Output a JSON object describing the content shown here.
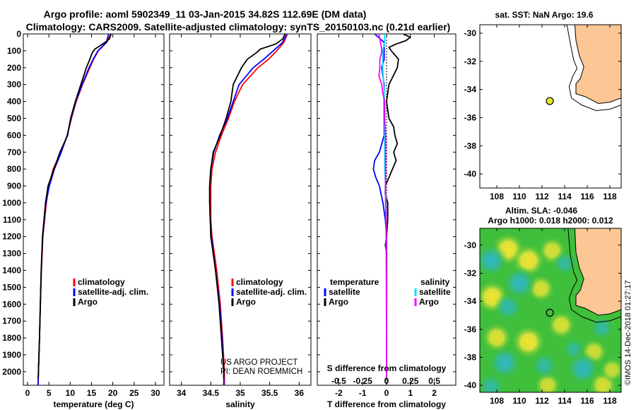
{
  "figure": {
    "title_line1": "Argo profile: aoml 5902349_11 03-Jan-2015 34.82S 112.69E (DM data)",
    "title_line2": "Climatology: CARS2009. Satellite-adjusted climatology: synTS_20150103.nc (0.21d earlier)",
    "credit_line1": "US ARGO PROJECT",
    "credit_line2": "PI: DEAN ROEMMICH",
    "stamp": "©IMOS 14-Dec-2018 01:27:17"
  },
  "colors": {
    "climatology": "#ff0000",
    "satellite": "#0000ff",
    "argo": "#000000",
    "satellite_salinity": "#00e5ff",
    "argo_salinity": "#ff00ff",
    "land": "#fcc695",
    "position_marker": "#e6e628"
  },
  "chart_data": [
    {
      "id": "temperature",
      "type": "line",
      "xlabel": "temperature (deg C)",
      "ylabel": "",
      "xlim": [
        -1,
        32
      ],
      "ylim": [
        2080,
        0
      ],
      "xticks": [
        0,
        5,
        10,
        15,
        20,
        25,
        30
      ],
      "yticks": [
        0,
        100,
        200,
        300,
        400,
        500,
        600,
        700,
        800,
        900,
        1000,
        1100,
        1200,
        1300,
        1400,
        1500,
        1600,
        1700,
        1800,
        1900,
        2000
      ],
      "legend": [
        "climatology",
        "satellite-adj. clim.",
        "Argo"
      ],
      "series": [
        {
          "name": "climatology",
          "depth": [
            0,
            50,
            100,
            150,
            200,
            300,
            400,
            500,
            600,
            700,
            800,
            900,
            1000,
            1200,
            1400,
            1600,
            1800,
            2000,
            2080
          ],
          "values": [
            19.5,
            18.6,
            16.6,
            15.5,
            14.6,
            12.9,
            11.4,
            10.3,
            9.3,
            7.8,
            6.0,
            5.0,
            4.4,
            3.6,
            3.25,
            3.0,
            2.8,
            2.55,
            2.45
          ]
        },
        {
          "name": "satellite-adj. clim.",
          "depth": [
            0,
            50,
            100,
            150,
            200,
            300,
            400,
            500,
            600,
            700,
            800,
            900,
            1000,
            1200,
            1400,
            1600,
            1800,
            2000,
            2080
          ],
          "values": [
            19.0,
            18.5,
            16.5,
            15.4,
            14.4,
            12.8,
            11.3,
            10.2,
            9.3,
            7.9,
            6.3,
            5.1,
            4.3,
            3.55,
            3.2,
            3.0,
            2.8,
            2.55,
            2.45
          ]
        },
        {
          "name": "Argo",
          "depth": [
            0,
            30,
            60,
            90,
            110,
            150,
            200,
            300,
            400,
            500,
            600,
            700,
            800,
            900,
            1000,
            1200,
            1400,
            1600,
            1800,
            2000,
            2040
          ],
          "values": [
            19.6,
            19.2,
            17.6,
            15.8,
            15.2,
            14.6,
            13.8,
            12.5,
            11.2,
            10.1,
            9.4,
            7.6,
            6.2,
            4.8,
            4.2,
            3.5,
            3.2,
            3.0,
            2.8,
            2.55,
            2.5
          ]
        }
      ]
    },
    {
      "id": "salinity",
      "type": "line",
      "xlabel": "salinity",
      "ylabel": "",
      "xlim": [
        33.8,
        36.2
      ],
      "ylim": [
        2080,
        0
      ],
      "xticks": [
        34,
        34.5,
        35,
        35.5,
        36
      ],
      "xticklabels": [
        "34",
        "34.5",
        "35",
        "35.5",
        "36"
      ],
      "legend": [
        "climatology",
        "satellite-adj. clim.",
        "Argo"
      ],
      "series": [
        {
          "name": "climatology",
          "depth": [
            0,
            50,
            100,
            150,
            200,
            300,
            400,
            500,
            600,
            700,
            800,
            900,
            1000,
            1100,
            1200,
            1400,
            1600,
            1800,
            2000,
            2080
          ],
          "values": [
            35.8,
            35.74,
            35.62,
            35.48,
            35.3,
            35.04,
            34.9,
            34.8,
            34.68,
            34.58,
            34.52,
            34.5,
            34.5,
            34.5,
            34.52,
            34.6,
            34.66,
            34.7,
            34.73,
            34.73
          ]
        },
        {
          "name": "satellite-adj. clim.",
          "depth": [
            0,
            50,
            100,
            150,
            200,
            300,
            400,
            500,
            600,
            700,
            800,
            900,
            1000,
            1100,
            1200,
            1400,
            1600,
            1800,
            2000,
            2080
          ],
          "values": [
            35.79,
            35.72,
            35.56,
            35.4,
            35.22,
            34.98,
            34.88,
            34.78,
            34.65,
            34.55,
            34.5,
            34.48,
            34.48,
            34.49,
            34.51,
            34.58,
            34.65,
            34.69,
            34.72,
            34.72
          ]
        },
        {
          "name": "Argo",
          "depth": [
            0,
            30,
            60,
            90,
            110,
            150,
            200,
            300,
            400,
            500,
            600,
            700,
            800,
            900,
            1000,
            1100,
            1200,
            1400,
            1600,
            1800,
            2000,
            2040
          ],
          "values": [
            35.76,
            35.72,
            35.6,
            35.34,
            35.28,
            35.12,
            35.02,
            34.88,
            34.84,
            34.76,
            34.66,
            34.54,
            34.5,
            34.48,
            34.48,
            34.49,
            34.5,
            34.58,
            34.64,
            34.68,
            34.72,
            34.72
          ]
        }
      ]
    },
    {
      "id": "difference",
      "type": "line",
      "xlabel": "T difference from climatology",
      "top_axis_label": "S difference from climatology",
      "xlim": [
        -2.9,
        2.9
      ],
      "ylim": [
        2080,
        0
      ],
      "xticks": [
        -2,
        -1,
        0,
        1,
        2
      ],
      "xticklabels": [
        "-2",
        "-1",
        "0",
        "1",
        "2"
      ],
      "s_ticks": [
        -0.5,
        -0.25,
        0,
        0.25,
        0.5
      ],
      "s_ticklabels": [
        "-0.5",
        "-0.25",
        "0",
        "0.25",
        "0.5"
      ],
      "s_scale": "1 salinity unit = 4 temperature units",
      "legend_temperature_header": "temperature",
      "legend_salinity_header": "salinity",
      "legend_temperature": [
        "satellite",
        "Argo"
      ],
      "legend_salinity": [
        "satellite",
        "Argo"
      ],
      "series": [
        {
          "name": "temperature satellite",
          "variable": "T",
          "depth": [
            0,
            50,
            100,
            150,
            200,
            300,
            400,
            500,
            600,
            700,
            750,
            800,
            850,
            900,
            1000,
            1100,
            1200,
            1400,
            1600,
            1800,
            2000,
            2040
          ],
          "values": [
            -0.5,
            -0.1,
            -0.1,
            -0.1,
            -0.2,
            -0.1,
            -0.1,
            -0.1,
            -0.1,
            -0.3,
            -0.5,
            -0.55,
            -0.45,
            -0.3,
            -0.15,
            -0.05,
            0,
            0,
            0,
            0,
            0,
            0
          ]
        },
        {
          "name": "temperature Argo",
          "variable": "T",
          "depth": [
            0,
            20,
            40,
            60,
            80,
            100,
            150,
            200,
            300,
            400,
            500,
            550,
            600,
            650,
            700,
            750,
            800,
            850,
            900,
            950,
            1000,
            1100,
            1200,
            1250,
            1300,
            1400,
            1500,
            1600,
            1800,
            2000,
            2040
          ],
          "values": [
            0.7,
            1.0,
            0.8,
            0.4,
            0.1,
            0.2,
            0.5,
            0.45,
            0.1,
            0.0,
            0.1,
            0.3,
            0.35,
            0.45,
            0.3,
            0.4,
            0.25,
            0.1,
            -0.05,
            -0.05,
            0.05,
            0.05,
            0.0,
            -0.05,
            0.0,
            0.0,
            0.0,
            0.0,
            0.0,
            0.0,
            0.0
          ]
        },
        {
          "name": "salinity satellite",
          "variable": "S",
          "depth": [
            0,
            50,
            100,
            200,
            300,
            400,
            500,
            600,
            700,
            800,
            900,
            1000,
            1100,
            1200,
            1400,
            1600,
            1800,
            2000,
            2040
          ],
          "values": [
            -0.02,
            -0.02,
            -0.04,
            -0.04,
            -0.03,
            -0.02,
            -0.02,
            -0.02,
            -0.02,
            -0.02,
            -0.01,
            -0.005,
            -0.005,
            -0.004,
            -0.002,
            -0.002,
            0,
            0,
            0
          ]
        },
        {
          "name": "salinity Argo",
          "variable": "S",
          "depth": [
            0,
            30,
            60,
            90,
            110,
            150,
            200,
            250,
            300,
            350,
            400,
            500,
            600,
            700,
            800,
            900,
            1000,
            1100,
            1200,
            1400,
            1600,
            1800,
            2000,
            2040
          ],
          "values": [
            -0.08,
            -0.07,
            -0.06,
            -0.05,
            -0.05,
            -0.07,
            -0.07,
            -0.08,
            -0.05,
            -0.04,
            -0.02,
            -0.02,
            -0.01,
            -0.01,
            -0.01,
            -0.01,
            -0.01,
            -0.005,
            -0.004,
            -0.002,
            0,
            0,
            0,
            0
          ]
        }
      ]
    },
    {
      "id": "sst_map",
      "type": "scatter",
      "title": "sat. SST: NaN Argo: 19.6",
      "xlim": [
        106.5,
        119
      ],
      "ylim": [
        -41,
        -29.4
      ],
      "xticks": [
        108,
        110,
        112,
        114,
        116,
        118
      ],
      "yticks": [
        -30,
        -32,
        -34,
        -36,
        -38,
        -40
      ],
      "yticklabels": [
        "-30",
        "-32",
        "-34",
        "-36",
        "-38",
        "-40"
      ],
      "marker": {
        "lon": 112.69,
        "lat": -34.82
      },
      "coast": [
        [
          114.9,
          -29.4
        ],
        [
          115.0,
          -30.5
        ],
        [
          115.3,
          -31.6
        ],
        [
          115.7,
          -32.4
        ],
        [
          115.4,
          -33.2
        ],
        [
          115.0,
          -33.6
        ],
        [
          115.0,
          -34.3
        ],
        [
          115.8,
          -34.5
        ],
        [
          117.0,
          -35.0
        ],
        [
          118.0,
          -34.9
        ],
        [
          119.0,
          -34.6
        ]
      ],
      "isobath": [
        [
          114.2,
          -29.4
        ],
        [
          114.5,
          -30.7
        ],
        [
          114.8,
          -31.9
        ],
        [
          115.1,
          -32.5
        ],
        [
          114.7,
          -33.1
        ],
        [
          114.4,
          -33.8
        ],
        [
          114.6,
          -34.6
        ],
        [
          115.5,
          -35.1
        ],
        [
          116.8,
          -35.5
        ],
        [
          118.0,
          -35.4
        ],
        [
          119.0,
          -35.1
        ]
      ]
    },
    {
      "id": "sla_map",
      "type": "heatmap",
      "title_line1": "Altim. SLA: -0.046",
      "title_line2": "Argo h1000: 0.018 h2000: 0.012",
      "xlim": [
        106.5,
        119
      ],
      "ylim": [
        -40.5,
        -28.8
      ],
      "xticks": [
        108,
        110,
        112,
        114,
        116,
        118
      ],
      "yticks": [
        -30,
        -32,
        -34,
        -36,
        -38,
        -40
      ],
      "yticklabels": [
        "-30",
        "-32",
        "-34",
        "-36",
        "-38",
        "-40"
      ],
      "marker": {
        "lon": 112.69,
        "lat": -34.82
      },
      "coast": [
        [
          114.9,
          -28.8
        ],
        [
          115.0,
          -30.5
        ],
        [
          115.3,
          -31.6
        ],
        [
          115.7,
          -32.4
        ],
        [
          115.4,
          -33.2
        ],
        [
          115.0,
          -33.6
        ],
        [
          115.0,
          -34.3
        ],
        [
          115.8,
          -34.5
        ],
        [
          117.0,
          -35.0
        ],
        [
          118.0,
          -34.9
        ],
        [
          119.0,
          -34.6
        ]
      ],
      "isobath": [
        [
          114.3,
          -28.8
        ],
        [
          114.5,
          -30.7
        ],
        [
          114.8,
          -31.9
        ],
        [
          115.1,
          -32.5
        ],
        [
          114.7,
          -33.1
        ],
        [
          114.4,
          -33.8
        ],
        [
          114.6,
          -34.6
        ],
        [
          115.5,
          -35.1
        ],
        [
          116.8,
          -35.5
        ],
        [
          118.0,
          -35.4
        ],
        [
          119.0,
          -35.1
        ]
      ],
      "anomalies": [
        {
          "lon": 109.0,
          "lat": -30.3,
          "v": 1.0
        },
        {
          "lon": 112.9,
          "lat": -30.4,
          "v": 0.7
        },
        {
          "lon": 110.8,
          "lat": -31.1,
          "v": 1.0
        },
        {
          "lon": 107.6,
          "lat": -33.7,
          "v": 1.0
        },
        {
          "lon": 111.9,
          "lat": -33.1,
          "v": 0.7
        },
        {
          "lon": 110.8,
          "lat": -36.9,
          "v": 1.0
        },
        {
          "lon": 108.0,
          "lat": -36.6,
          "v": 0.8
        },
        {
          "lon": 113.7,
          "lat": -35.7,
          "v": 0.7
        },
        {
          "lon": 116.6,
          "lat": -37.6,
          "v": 0.6
        },
        {
          "lon": 112.5,
          "lat": -40.0,
          "v": 0.6
        },
        {
          "lon": 117.4,
          "lat": -40.0,
          "v": 0.7
        },
        {
          "lon": 118.2,
          "lat": -38.9,
          "v": 0.5
        },
        {
          "lon": 107.5,
          "lat": -31.1,
          "v": -1.0
        },
        {
          "lon": 110.0,
          "lat": -32.7,
          "v": -1.0
        },
        {
          "lon": 109.0,
          "lat": -34.4,
          "v": -0.7
        },
        {
          "lon": 108.7,
          "lat": -38.4,
          "v": -1.0
        },
        {
          "lon": 112.2,
          "lat": -38.6,
          "v": -0.6
        },
        {
          "lon": 115.6,
          "lat": -38.8,
          "v": -1.0
        },
        {
          "lon": 117.3,
          "lat": -35.9,
          "v": -0.5
        },
        {
          "lon": 114.8,
          "lat": -37.4,
          "v": -0.4
        },
        {
          "lon": 114.0,
          "lat": -31.3,
          "v": -0.5
        },
        {
          "lon": 107.5,
          "lat": -40.1,
          "v": -0.6
        }
      ]
    }
  ]
}
